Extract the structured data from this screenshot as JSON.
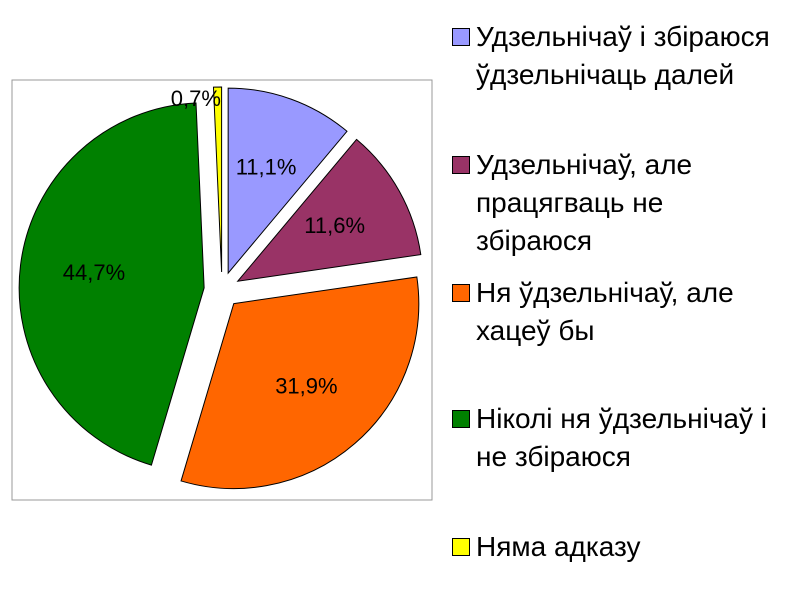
{
  "chart_data": {
    "type": "pie",
    "categories": [
      "Удзельнічаў і збіраюся ўдзельнічаць далей",
      "Удзельнічаў, але працягваць не збіраюся",
      "Ня ўдзельнічаў, але хацеў бы",
      "Ніколі ня ўдзельнічаў і не збіраюся",
      "Няма адказу"
    ],
    "values": [
      11.1,
      11.6,
      31.9,
      44.7,
      0.7
    ],
    "value_labels": [
      "11,1%",
      "11,6%",
      "31,9%",
      "44,7%",
      "0,7%"
    ],
    "colors": [
      "#9999ff",
      "#993366",
      "#ff6600",
      "#008000",
      "#ffff00"
    ]
  }
}
